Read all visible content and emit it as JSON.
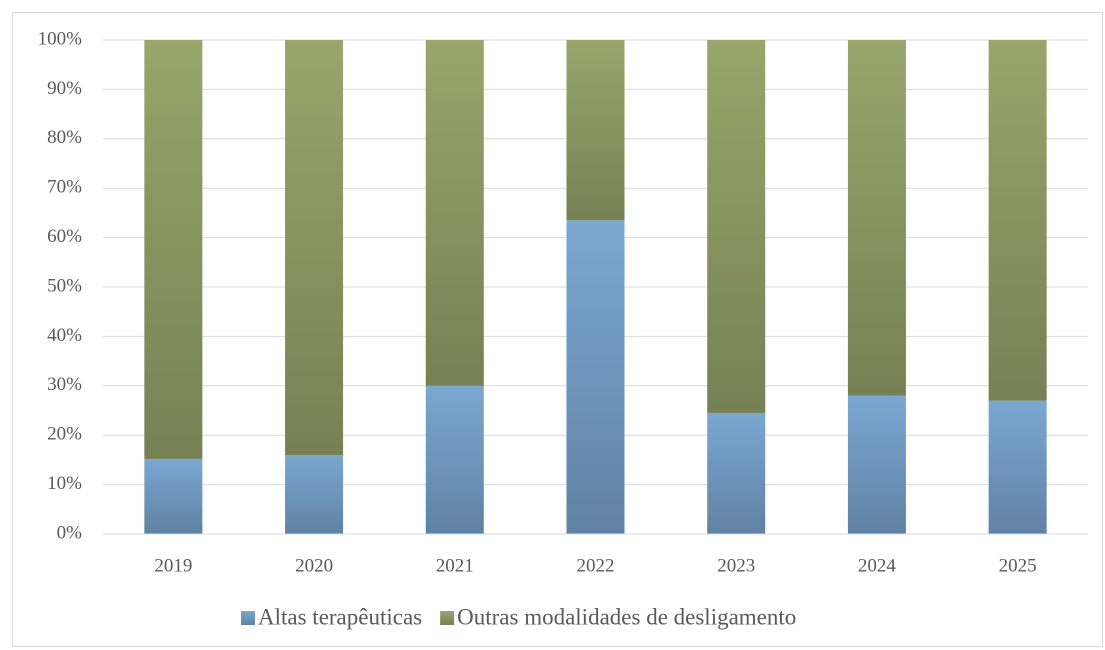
{
  "chart_data": {
    "type": "stacked_bar_percent",
    "categories": [
      "2019",
      "2020",
      "2021",
      "2022",
      "2023",
      "2024",
      "2025"
    ],
    "series": [
      {
        "name": "Altas terapêuticas",
        "color": "#7ba7d1",
        "values": [
          15.2,
          16,
          30,
          63.5,
          24.5,
          28,
          27
        ]
      },
      {
        "name": "Outras modalidades de desligamento",
        "color": "#98a56b",
        "values": [
          84.8,
          84,
          70,
          36.5,
          75.5,
          72,
          73
        ]
      }
    ],
    "ylim": [
      0,
      100
    ],
    "yticks": [
      {
        "value": 0,
        "label": "0%"
      },
      {
        "value": 10,
        "label": "10%"
      },
      {
        "value": 20,
        "label": "20%"
      },
      {
        "value": 30,
        "label": "30%"
      },
      {
        "value": 40,
        "label": "40%"
      },
      {
        "value": 50,
        "label": "50%"
      },
      {
        "value": 60,
        "label": "60%"
      },
      {
        "value": 70,
        "label": "70%"
      },
      {
        "value": 80,
        "label": "80%"
      },
      {
        "value": 90,
        "label": "90%"
      },
      {
        "value": 100,
        "label": "100%"
      }
    ],
    "grid": true,
    "legend": "bottom"
  }
}
